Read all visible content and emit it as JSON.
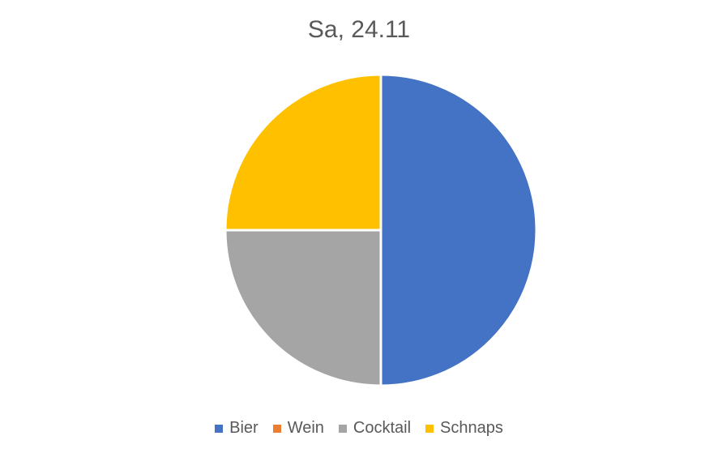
{
  "chart_data": {
    "type": "pie",
    "title": "Sa, 24.11",
    "categories": [
      "Bier",
      "Wein",
      "Cocktail",
      "Schnaps"
    ],
    "values": [
      2,
      0,
      1,
      1
    ],
    "colors": [
      "#4472C4",
      "#ED7D31",
      "#A5A5A5",
      "#FFC000"
    ],
    "legend": "bottom",
    "start_angle_deg": 0,
    "direction": "clockwise"
  }
}
